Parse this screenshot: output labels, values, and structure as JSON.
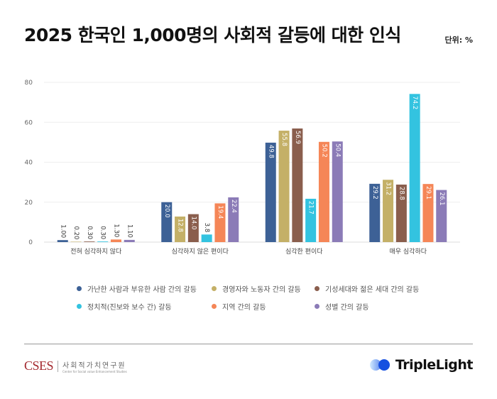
{
  "title": "2025 한국인 1,000명의 사회적 갈등에 대한 인식",
  "unit": "단위: %",
  "chart_data": {
    "type": "bar",
    "title": "2025 한국인 1,000명의 사회적 갈등에 대한 인식",
    "ylim": [
      0,
      80
    ],
    "yticks": [
      0,
      20,
      40,
      60,
      80
    ],
    "grid": true,
    "legend_position": "bottom",
    "categories": [
      "전혀 심각하지 않다",
      "심각하지 않은 편이다",
      "심각한 편이다",
      "매우 심각하다"
    ],
    "series": [
      {
        "name": "가난한 사람과 부유한 사람 간의 갈등",
        "color": "#3d6196",
        "values": [
          1.0,
          20.0,
          49.8,
          29.2
        ],
        "labels": [
          "1.00",
          "20.0",
          "49.8",
          "29.2"
        ]
      },
      {
        "name": "경영자와 노동자 간의 갈등",
        "color": "#c4b067",
        "values": [
          0.2,
          12.8,
          55.8,
          31.2
        ],
        "labels": [
          "0.20",
          "12.8",
          "55.8",
          "31.2"
        ]
      },
      {
        "name": "기성세대와 젊은 세대 간의 갈등",
        "color": "#8a5e4d",
        "values": [
          0.3,
          14.0,
          56.9,
          28.8
        ],
        "labels": [
          "0.30",
          "14.0",
          "56.9",
          "28.8"
        ]
      },
      {
        "name": "정치적(진보와 보수 간) 갈등",
        "color": "#33c3e0",
        "values": [
          0.3,
          3.8,
          21.7,
          74.2
        ],
        "labels": [
          "0.30",
          "3.8",
          "21.7",
          "74.2"
        ]
      },
      {
        "name": "지역 간의 갈등",
        "color": "#f58657",
        "values": [
          1.3,
          19.4,
          50.2,
          29.1
        ],
        "labels": [
          "1.30",
          "19.4",
          "50.2",
          "29.1"
        ]
      },
      {
        "name": "성별 간의 갈등",
        "color": "#8b7bb7",
        "values": [
          1.1,
          22.4,
          50.4,
          26.1
        ],
        "labels": [
          "1.10",
          "22.4",
          "50.4",
          "26.1"
        ]
      }
    ]
  },
  "footer": {
    "cses_logo": "CSES",
    "cses_kr": "사회적가치연구원",
    "cses_en": "Center for Social value Enhancement Studies",
    "tl_name": "TripleLight"
  }
}
